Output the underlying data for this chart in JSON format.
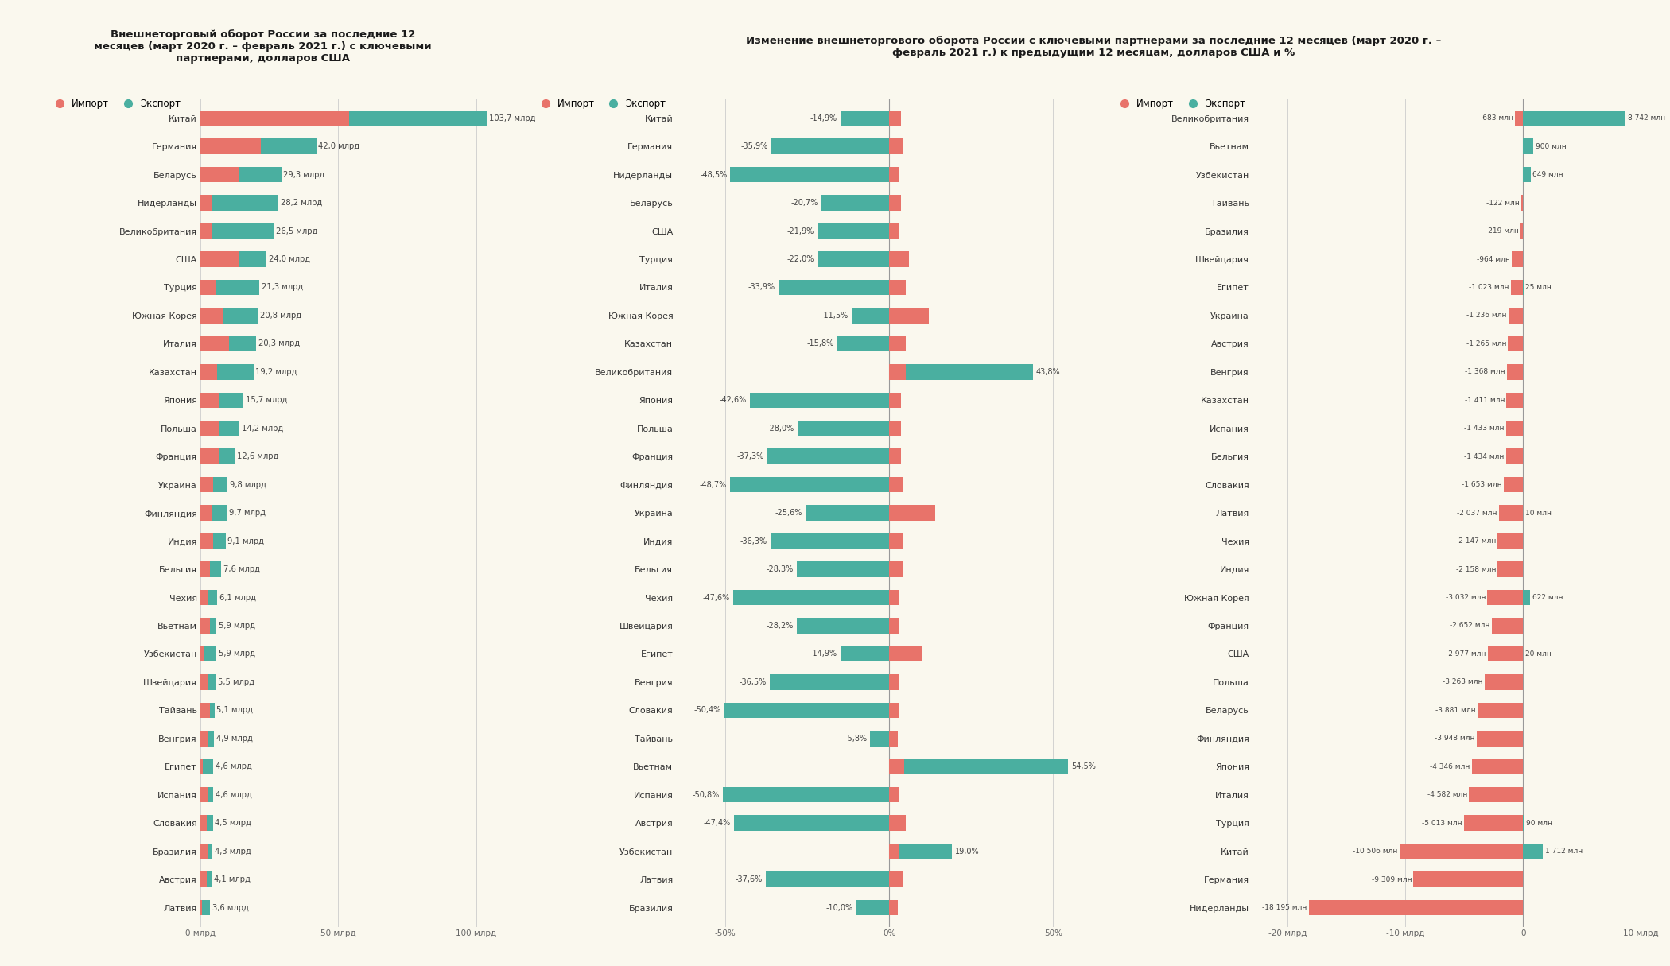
{
  "title1": "Внешнеторговый оборот России за последние 12\nмесяцев (март 2020 г. – февраль 2021 г.) с ключевыми\nпартнерами, долларов США",
  "title2": "Изменение внешнеторгового оборота России с ключевыми партнерами за последние 12 месяцев (март 2020 г. –\nфевраль 2021 г.) к предыдущим 12 месяцам, долларов США и %",
  "import_color": "#E8736A",
  "export_color": "#4AAFA0",
  "bg_color": "#FAF8EE",
  "title_bg": "#F5C518",
  "chart1_countries": [
    "Китай",
    "Германия",
    "Беларусь",
    "Нидерланды",
    "Великобритания",
    "США",
    "Турция",
    "Южная Корея",
    "Италия",
    "Казахстан",
    "Япония",
    "Польша",
    "Франция",
    "Украина",
    "Финляндия",
    "Индия",
    "Бельгия",
    "Чехия",
    "Вьетнам",
    "Узбекистан",
    "Швейцария",
    "Тайвань",
    "Венгрия",
    "Египет",
    "Испания",
    "Словакия",
    "Бразилия",
    "Австрия",
    "Латвия"
  ],
  "chart1_import": [
    54.0,
    22.0,
    14.0,
    4.0,
    4.0,
    14.0,
    5.5,
    8.0,
    10.5,
    6.0,
    7.0,
    6.5,
    6.5,
    4.5,
    4.0,
    4.5,
    3.5,
    3.0,
    3.5,
    1.5,
    2.5,
    3.5,
    2.8,
    0.8,
    2.5,
    2.2,
    2.5,
    2.2,
    0.5
  ],
  "chart1_export": [
    49.7,
    20.0,
    15.3,
    24.2,
    22.5,
    10.0,
    15.8,
    12.8,
    9.8,
    13.2,
    8.7,
    7.7,
    6.1,
    5.3,
    5.7,
    4.6,
    4.1,
    3.1,
    2.4,
    4.4,
    3.0,
    1.6,
    2.1,
    3.8,
    2.1,
    2.3,
    1.8,
    1.9,
    3.1
  ],
  "chart1_totals": [
    "103,7 млрд",
    "42,0 млрд",
    "29,3 млрд",
    "28,2 млрд",
    "26,5 млрд",
    "24,0 млрд",
    "21,3 млрд",
    "20,8 млрд",
    "20,3 млрд",
    "19,2 млрд",
    "15,7 млрд",
    "14,2 млрд",
    "12,6 млрд",
    "9,8 млрд",
    "9,7 млрд",
    "9,1 млрд",
    "7,6 млрд",
    "6,1 млрд",
    "5,9 млрд",
    "5,9 млрд",
    "5,5 млрд",
    "5,1 млрд",
    "4,9 млрд",
    "4,6 млрд",
    "4,6 млрд",
    "4,5 млрд",
    "4,3 млрд",
    "4,1 млрд",
    "3,6 млрд"
  ],
  "chart2_countries": [
    "Китай",
    "Германия",
    "Нидерланды",
    "Беларусь",
    "США",
    "Турция",
    "Италия",
    "Южная Корея",
    "Казахстан",
    "Великобритания",
    "Япония",
    "Польша",
    "Франция",
    "Финляндия",
    "Украина",
    "Индия",
    "Бельгия",
    "Чехия",
    "Швейцария",
    "Египет",
    "Венгрия",
    "Словакия",
    "Тайвань",
    "Вьетнам",
    "Испания",
    "Австрия",
    "Узбекистан",
    "Латвия",
    "Бразилия"
  ],
  "chart2_export_pct": [
    -14.9,
    -35.9,
    -48.5,
    -20.7,
    -21.9,
    -22.0,
    -33.9,
    -11.5,
    -15.8,
    43.8,
    -42.6,
    -28.0,
    -37.3,
    -48.7,
    -25.6,
    -36.3,
    -28.3,
    -47.6,
    -28.2,
    -14.9,
    -36.5,
    -50.4,
    -5.8,
    54.5,
    -50.8,
    -47.4,
    19.0,
    -37.6,
    -10.0
  ],
  "chart2_import_pct": [
    3.5,
    4.0,
    3.0,
    3.5,
    3.0,
    6.0,
    5.0,
    12.0,
    5.0,
    5.0,
    3.5,
    3.5,
    3.5,
    4.0,
    14.0,
    4.0,
    4.0,
    3.0,
    3.0,
    10.0,
    3.0,
    3.0,
    2.5,
    4.5,
    3.0,
    5.0,
    3.0,
    4.0,
    2.5
  ],
  "chart2_labels": [
    "-14,9%",
    "-35,9%",
    "-48,5%",
    "-20,7%",
    "-21,9%",
    "-22,0%",
    "-33,9%",
    "-11,5%",
    "-15,8%",
    "43,8%",
    "-42,6%",
    "-28,0%",
    "-37,3%",
    "-48,7%",
    "-25,6%",
    "-36,3%",
    "-28,3%",
    "-47,6%",
    "-28,2%",
    "-14,9%",
    "-36,5%",
    "-50,4%",
    "-5,8%",
    "54,5%",
    "-50,8%",
    "-47,4%",
    "19,0%",
    "-37,6%",
    "-10,0%"
  ],
  "chart3_countries": [
    "Великобритания",
    "Вьетнам",
    "Узбекистан",
    "Тайвань",
    "Бразилия",
    "Швейцария",
    "Египет",
    "Украина",
    "Австрия",
    "Венгрия",
    "Казахстан",
    "Испания",
    "Бельгия",
    "Словакия",
    "Латвия",
    "Чехия",
    "Индия",
    "Южная Корея",
    "Франция",
    "США",
    "Польша",
    "Беларусь",
    "Финляндия",
    "Япония",
    "Италия",
    "Турция",
    "Китай",
    "Германия",
    "Нидерланды"
  ],
  "chart3_neg": [
    -683,
    0,
    0,
    -122,
    -219,
    -964,
    -1023,
    -1236,
    -1265,
    -1368,
    -1411,
    -1433,
    -1434,
    -1653,
    -2037,
    -2147,
    -2158,
    -3032,
    -2652,
    -2977,
    -3263,
    -3881,
    -3948,
    -4346,
    -4582,
    -5013,
    -10506,
    -9309,
    -18195
  ],
  "chart3_pos": [
    8742,
    900,
    649,
    0,
    0,
    0,
    25,
    0,
    0,
    0,
    0,
    0,
    0,
    0,
    10,
    0,
    0,
    622,
    0,
    20,
    0,
    0,
    0,
    0,
    0,
    90,
    1712,
    0,
    0
  ],
  "chart3_neg_labels": [
    "-683 млн",
    "",
    "",
    "-122 млн",
    "-219 млн",
    "-964 млн",
    "-1 023 млн",
    "-1 236 млн",
    "-1 265 млн",
    "-1 368 млн",
    "-1 411 млн",
    "-1 433 млн",
    "-1 434 млн",
    "-1 653 млн",
    "-2 037 млн",
    "-2 147 млн",
    "-2 158 млн",
    "-3 032 млн",
    "-2 652 млн",
    "-2 977 млн",
    "-3 263 млн",
    "-3 881 млн",
    "-3 948 млн",
    "-4 346 млн",
    "-4 582 млн",
    "-5 013 млн",
    "-10 506 млн",
    "-9 309 млн",
    "-18 195 млн"
  ],
  "chart3_pos_labels": [
    "8 742 млн",
    "900 млн",
    "649 млн",
    "",
    "",
    "",
    "25 млн",
    "",
    "",
    "",
    "",
    "",
    "",
    "",
    "10 млн",
    "",
    "",
    "622 млн",
    "",
    "20 млн",
    "",
    "",
    "",
    "",
    "",
    "90 млн",
    "1 712 млн",
    "",
    ""
  ]
}
